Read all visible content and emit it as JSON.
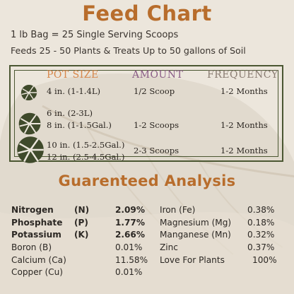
{
  "title": "Feed Chart",
  "subtitle_line1": "1 lb Bag = 25 Single Serving Scoops",
  "subtitle_line2": "Feeds 25 - 50 Plants & Treats Up to 50 gallons of Soil",
  "table": {
    "headers": {
      "pot": "POT SIZE",
      "amount": "AMOUNT",
      "frequency": "FREQUENCY"
    },
    "header_colors": {
      "pot": "#d8874b",
      "amount": "#8a5c86",
      "frequency": "#8a7c72"
    },
    "rows": [
      {
        "pot_lines": [
          "4 in. (1-1.4L)"
        ],
        "amount": "1/2 Scoop",
        "frequency": "1-2 Months",
        "icon": "monstera-leaf-icon"
      },
      {
        "pot_lines": [
          "6 in. (2-3L)",
          "8 in. (1-1.5Gal.)"
        ],
        "amount": "1-2 Scoops",
        "frequency": "1-2 Months",
        "icon": "monstera-leaf-icon"
      },
      {
        "pot_lines": [
          "10 in. (1.5-2.5Gal.)",
          "12 in. (2.5-4.5Gal.)"
        ],
        "amount": "2-3 Scoops",
        "frequency": "1-2 Months",
        "icon": "monstera-leaf-icon"
      }
    ]
  },
  "analysis": {
    "title": "Guarenteed Analysis",
    "left": [
      {
        "name": "Nitrogen",
        "symbol": "(N)",
        "value": "2.09%",
        "bold": true
      },
      {
        "name": "Phosphate",
        "symbol": "(P)",
        "value": "1.77%",
        "bold": true
      },
      {
        "name": "Potassium",
        "symbol": "(K)",
        "value": "2.66%",
        "bold": true
      },
      {
        "name": "Boron (B)",
        "symbol": "",
        "value": "0.01%",
        "bold": false
      },
      {
        "name": "Calcium (Ca)",
        "symbol": "",
        "value": "11.58%",
        "bold": false
      },
      {
        "name": "Copper (Cu)",
        "symbol": "",
        "value": "0.01%",
        "bold": false
      }
    ],
    "right": [
      {
        "name": "Iron (Fe)",
        "value": "0.38%"
      },
      {
        "name": "Magnesium (Mg)",
        "value": "0.18%"
      },
      {
        "name": "Manganese (Mn)",
        "value": "0.32%"
      },
      {
        "name": "Zinc",
        "value": "0.37%"
      },
      {
        "name": "Love For Plants",
        "value": "100%"
      }
    ]
  },
  "colors": {
    "accent": "#b86d2c",
    "frame": "#4b5732",
    "leaf": "#3f4a2b",
    "background": "#ece6dc"
  }
}
